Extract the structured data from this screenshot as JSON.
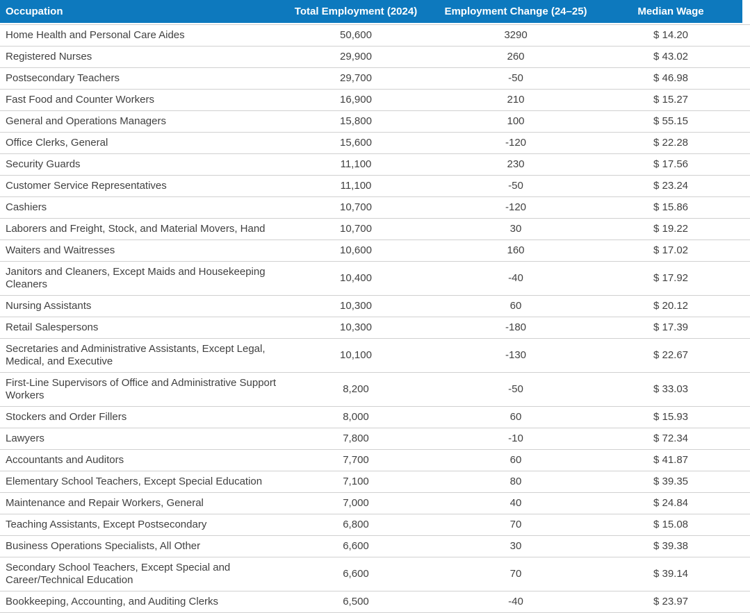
{
  "colors": {
    "header_bg": "#0d79be",
    "header_text": "#ffffff",
    "body_text": "#414141",
    "row_divider": "#d0d0d0"
  },
  "chart_data": {
    "type": "table",
    "columns": [
      "Occupation",
      "Total Employment (2024)",
      "Employment Change (24–25)",
      "Median Wage"
    ],
    "rows": [
      {
        "occupation": "Home Health and Personal Care Aides",
        "total_employment": "50,600",
        "employment_change": "3290",
        "median_wage": "$ 14.20"
      },
      {
        "occupation": "Registered Nurses",
        "total_employment": "29,900",
        "employment_change": "260",
        "median_wage": "$ 43.02"
      },
      {
        "occupation": "Postsecondary Teachers",
        "total_employment": "29,700",
        "employment_change": "-50",
        "median_wage": "$ 46.98"
      },
      {
        "occupation": "Fast Food and Counter Workers",
        "total_employment": "16,900",
        "employment_change": "210",
        "median_wage": "$ 15.27"
      },
      {
        "occupation": "General and Operations Managers",
        "total_employment": "15,800",
        "employment_change": "100",
        "median_wage": "$ 55.15"
      },
      {
        "occupation": "Office Clerks, General",
        "total_employment": "15,600",
        "employment_change": "-120",
        "median_wage": "$ 22.28"
      },
      {
        "occupation": "Security Guards",
        "total_employment": "11,100",
        "employment_change": "230",
        "median_wage": "$ 17.56"
      },
      {
        "occupation": "Customer Service Representatives",
        "total_employment": "11,100",
        "employment_change": "-50",
        "median_wage": "$ 23.24"
      },
      {
        "occupation": "Cashiers",
        "total_employment": "10,700",
        "employment_change": "-120",
        "median_wage": "$ 15.86"
      },
      {
        "occupation": "Laborers and Freight, Stock, and Material Movers, Hand",
        "total_employment": "10,700",
        "employment_change": "30",
        "median_wage": "$ 19.22"
      },
      {
        "occupation": "Waiters and Waitresses",
        "total_employment": "10,600",
        "employment_change": "160",
        "median_wage": "$ 17.02"
      },
      {
        "occupation": "Janitors and Cleaners, Except Maids and Housekeeping Cleaners",
        "total_employment": "10,400",
        "employment_change": "-40",
        "median_wage": "$ 17.92"
      },
      {
        "occupation": "Nursing Assistants",
        "total_employment": "10,300",
        "employment_change": "60",
        "median_wage": "$ 20.12"
      },
      {
        "occupation": "Retail Salespersons",
        "total_employment": "10,300",
        "employment_change": "-180",
        "median_wage": "$ 17.39"
      },
      {
        "occupation": "Secretaries and Administrative Assistants, Except Legal, Medical, and Executive",
        "total_employment": "10,100",
        "employment_change": "-130",
        "median_wage": "$ 22.67"
      },
      {
        "occupation": "First-Line Supervisors of Office and Administrative Support Workers",
        "total_employment": "8,200",
        "employment_change": "-50",
        "median_wage": "$ 33.03"
      },
      {
        "occupation": "Stockers and Order Fillers",
        "total_employment": "8,000",
        "employment_change": "60",
        "median_wage": "$ 15.93"
      },
      {
        "occupation": "Lawyers",
        "total_employment": "7,800",
        "employment_change": "-10",
        "median_wage": "$ 72.34"
      },
      {
        "occupation": "Accountants and Auditors",
        "total_employment": "7,700",
        "employment_change": "60",
        "median_wage": "$ 41.87"
      },
      {
        "occupation": "Elementary School Teachers, Except Special Education",
        "total_employment": "7,100",
        "employment_change": "80",
        "median_wage": "$ 39.35"
      },
      {
        "occupation": "Maintenance and Repair Workers, General",
        "total_employment": "7,000",
        "employment_change": "40",
        "median_wage": "$ 24.84"
      },
      {
        "occupation": "Teaching Assistants, Except Postsecondary",
        "total_employment": "6,800",
        "employment_change": "70",
        "median_wage": "$ 15.08"
      },
      {
        "occupation": "Business Operations Specialists, All Other",
        "total_employment": "6,600",
        "employment_change": "30",
        "median_wage": "$ 39.38"
      },
      {
        "occupation": "Secondary School Teachers, Except Special and Career/Technical Education",
        "total_employment": "6,600",
        "employment_change": "70",
        "median_wage": "$ 39.14"
      },
      {
        "occupation": "Bookkeeping, Accounting, and Auditing Clerks",
        "total_employment": "6,500",
        "employment_change": "-40",
        "median_wage": "$ 23.97"
      }
    ]
  }
}
